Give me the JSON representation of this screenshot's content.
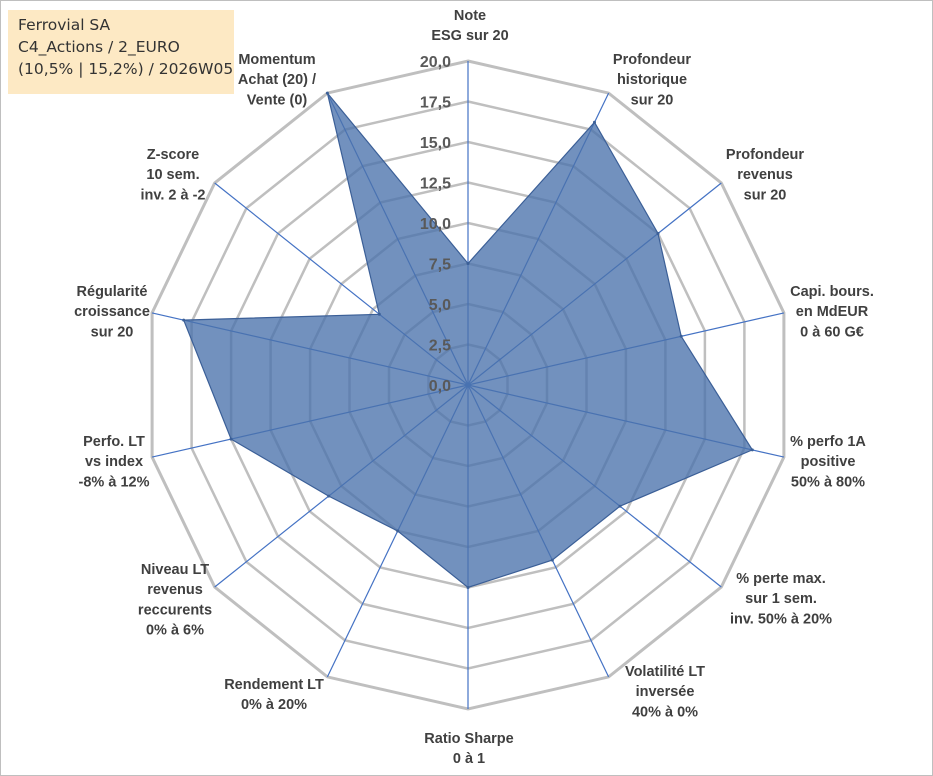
{
  "info": {
    "line1": "Ferrovial SA",
    "line2": "C4_Actions / 2_EURO",
    "line3": "(10,5% | 15,2%) / 2026W05"
  },
  "chart_data": {
    "type": "radar",
    "title": "Ferrovial SA",
    "rmin": 0,
    "rmax": 20,
    "ticks": [
      0,
      2.5,
      5,
      7.5,
      10,
      12.5,
      15,
      17.5,
      20
    ],
    "tick_labels": [
      "0,0",
      "2,5",
      "5,0",
      "7,5",
      "10,0",
      "12,5",
      "15,0",
      "17,5",
      "20,0"
    ],
    "axes": [
      {
        "label": [
          "Note",
          "ESG sur 20"
        ],
        "value": 7.5
      },
      {
        "label": [
          "Profondeur",
          "historique",
          "sur 20"
        ],
        "value": 18
      },
      {
        "label": [
          "Profondeur",
          "revenus",
          "sur 20"
        ],
        "value": 15
      },
      {
        "label": [
          "Capi. bours.",
          "en MdEUR",
          "0 à 60 G€"
        ],
        "value": 13.5
      },
      {
        "label": [
          "% perfo 1A",
          "positive",
          "50% à 80%"
        ],
        "value": 18
      },
      {
        "label": [
          "% perte max.",
          "sur 1 sem.",
          "inv. 50% à 20%"
        ],
        "value": 12
      },
      {
        "label": [
          "Volatilité LT",
          "inversée",
          "40% à 0%"
        ],
        "value": 12
      },
      {
        "label": [
          "Ratio Sharpe",
          "0 à 1"
        ],
        "value": 12.5
      },
      {
        "label": [
          "Rendement LT",
          "0% à 20%"
        ],
        "value": 10
      },
      {
        "label": [
          "Niveau LT",
          "revenus",
          "reccurents",
          "0% à 6%"
        ],
        "value": 11
      },
      {
        "label": [
          "Perfo. LT",
          "vs index",
          "-8% à 12%"
        ],
        "value": 15
      },
      {
        "label": [
          "Régularité",
          "croissance",
          "sur 20"
        ],
        "value": 18
      },
      {
        "label": [
          "Z-score",
          "10 sem.",
          "inv. 2 à -2"
        ],
        "value": 7
      },
      {
        "label": [
          "Momentum",
          "Achat (20) /",
          "Vente (0)"
        ],
        "value": 20
      }
    ],
    "series_color": "#4a72ac",
    "grid_color": "#bfbfbf",
    "spoke_color": "#4472c4"
  }
}
